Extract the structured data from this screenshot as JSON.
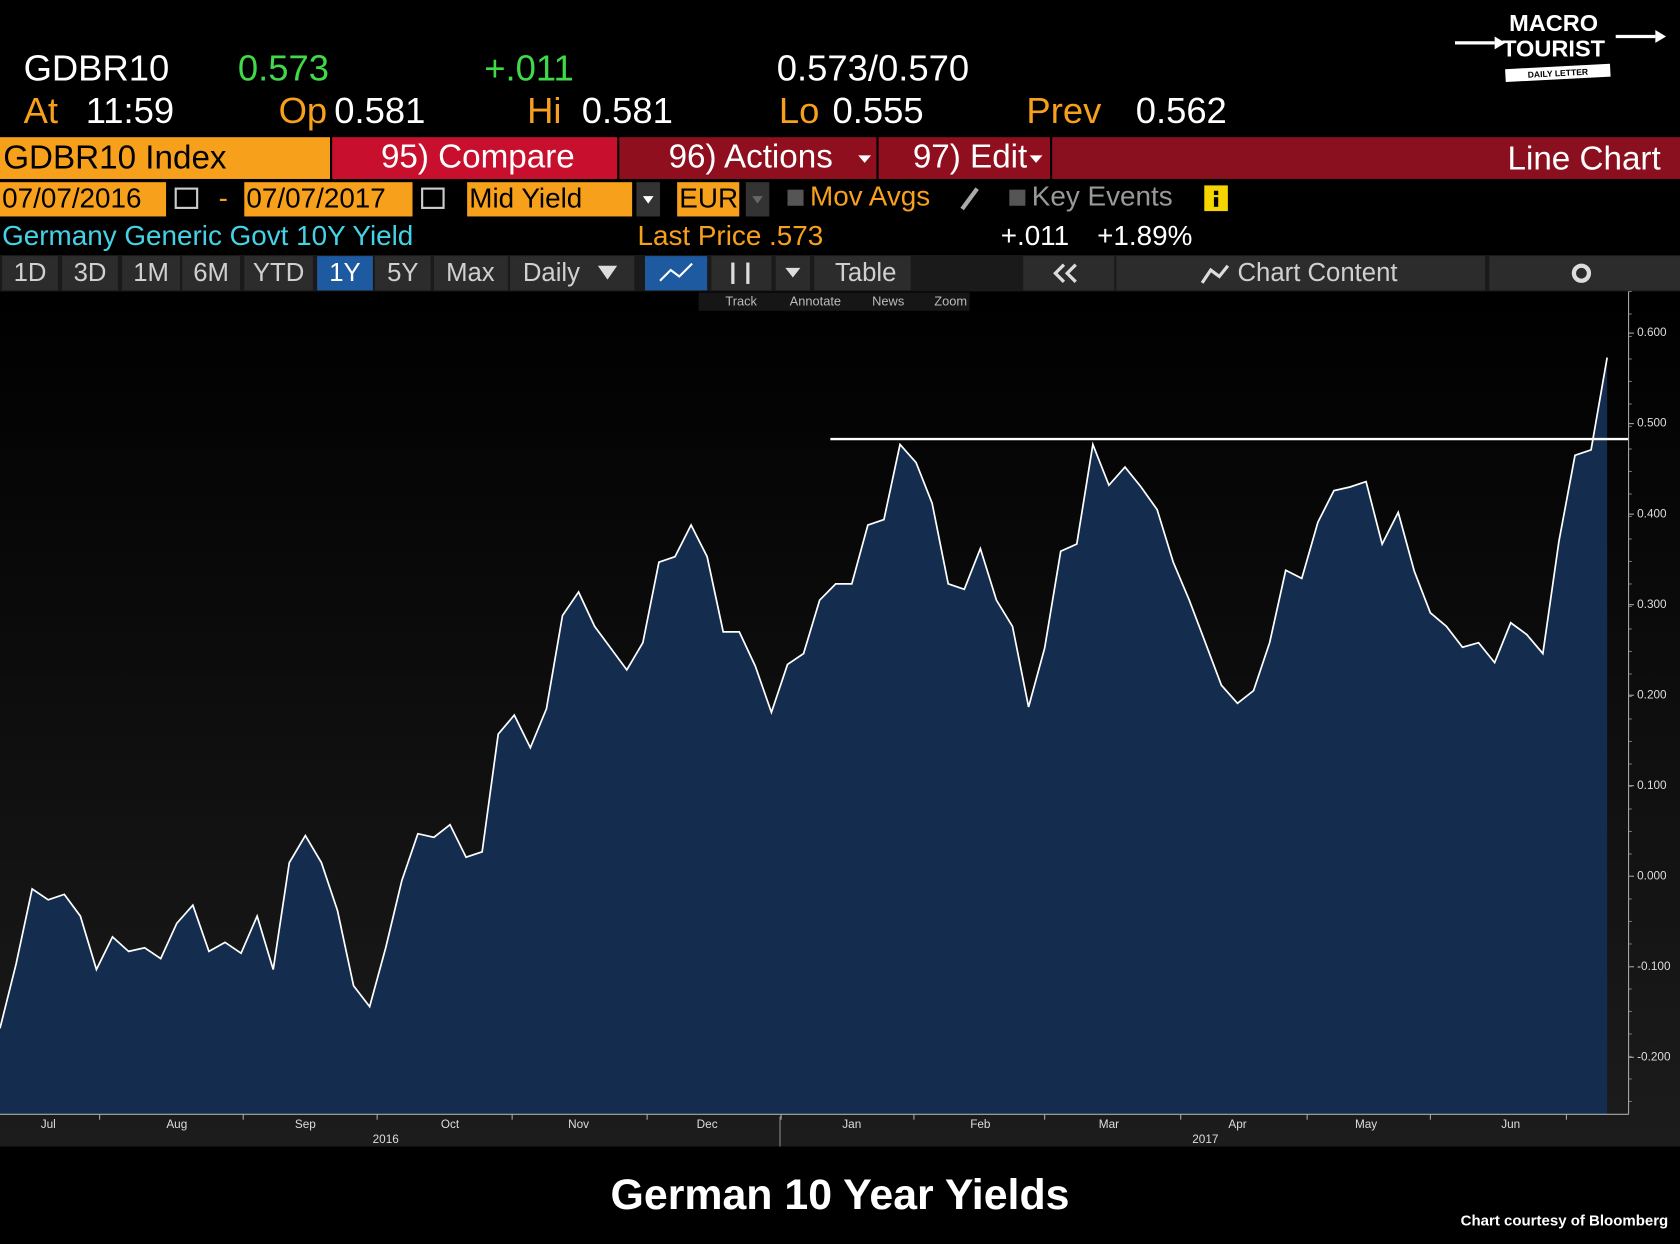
{
  "header": {
    "ticker": "GDBR10",
    "last": "0.573",
    "change": "+.011",
    "bid_ask": "0.573/0.570",
    "at_label": "At",
    "time": "11:59",
    "open_label": "Op",
    "open": "0.581",
    "high_label": "Hi",
    "high": "0.581",
    "low_label": "Lo",
    "low": "0.555",
    "prev_label": "Prev",
    "prev": "0.562"
  },
  "logo": {
    "line1": "MACRO",
    "line2": "TOURIST",
    "line3": "DAILY LETTER"
  },
  "menu": {
    "security": "GDBR10 Index",
    "compare": "95) Compare",
    "actions": "96) Actions",
    "edit": "97) Edit",
    "chart_type": "Line Chart"
  },
  "controls": {
    "start_date": "07/07/2016",
    "separator": "-",
    "end_date": "07/07/2017",
    "field": "Mid Yield",
    "currency": "EUR",
    "mov_avgs": "Mov Avgs",
    "key_events": "Key Events"
  },
  "info": {
    "name": "Germany Generic Govt 10Y Yield",
    "last_price": "Last Price .573",
    "change": "+.011",
    "change_pct": "+1.89%"
  },
  "periods": [
    "1D",
    "3D",
    "1M",
    "6M",
    "YTD",
    "1Y",
    "5Y",
    "Max"
  ],
  "frequency": "Daily",
  "table": "Table",
  "chart_content": "Chart Content",
  "tools": [
    "Track",
    "Annotate",
    "News",
    "Zoom"
  ],
  "chart_data": {
    "type": "area",
    "categories": [
      null,
      null,
      null,
      "Jul",
      null,
      null,
      null,
      null,
      null,
      null,
      null,
      "Aug",
      null,
      null,
      null,
      null,
      null,
      null,
      null,
      "Sep",
      null,
      null,
      null,
      null,
      null,
      null,
      null,
      null,
      "Oct",
      null,
      null,
      null,
      null,
      null,
      null,
      null,
      "Nov",
      null,
      null,
      null,
      null,
      null,
      null,
      null,
      "Dec",
      null,
      null,
      null,
      null,
      null,
      null,
      null,
      null,
      "Jan",
      null,
      null,
      null,
      null,
      null,
      null,
      null,
      "Feb",
      null,
      null,
      null,
      null,
      null,
      null,
      null,
      "Mar",
      null,
      null,
      null,
      null,
      null,
      null,
      null,
      "Apr",
      null,
      null,
      null,
      null,
      null,
      null,
      null,
      "May",
      null,
      null,
      null,
      null,
      null,
      null,
      null,
      null,
      "Jun",
      null,
      null,
      null,
      null,
      null,
      null
    ],
    "year_categories": [
      null,
      null,
      null,
      null,
      null,
      null,
      null,
      null,
      null,
      null,
      null,
      null,
      null,
      null,
      null,
      null,
      null,
      null,
      null,
      null,
      null,
      null,
      null,
      null,
      "2016",
      null,
      null,
      null,
      null,
      null,
      null,
      null,
      null,
      null,
      null,
      null,
      null,
      null,
      null,
      null,
      null,
      null,
      null,
      null,
      null,
      null,
      null,
      null,
      null,
      null,
      null,
      null,
      null,
      null,
      null,
      null,
      null,
      null,
      null,
      null,
      null,
      null,
      null,
      null,
      null,
      null,
      null,
      null,
      null,
      null,
      null,
      null,
      null,
      null,
      null,
      "2017",
      null,
      null,
      null,
      null,
      null,
      null,
      null,
      null,
      null,
      null,
      null,
      null,
      null,
      null,
      null,
      null,
      null,
      null,
      null,
      null,
      null,
      null,
      null,
      null,
      null
    ],
    "values": [
      -0.168,
      -0.097,
      -0.014,
      -0.026,
      -0.02,
      -0.044,
      -0.103,
      -0.067,
      -0.083,
      -0.079,
      -0.091,
      -0.052,
      -0.032,
      -0.083,
      -0.073,
      -0.085,
      -0.044,
      -0.103,
      0.015,
      0.045,
      0.015,
      -0.038,
      -0.121,
      -0.144,
      -0.079,
      -0.005,
      0.047,
      0.043,
      0.057,
      0.021,
      0.027,
      0.157,
      0.178,
      0.142,
      0.185,
      0.288,
      0.314,
      0.276,
      0.252,
      0.228,
      0.258,
      0.347,
      0.353,
      0.388,
      0.353,
      0.27,
      0.27,
      0.232,
      0.181,
      0.234,
      0.246,
      0.305,
      0.323,
      0.323,
      0.388,
      0.394,
      0.477,
      0.457,
      0.412,
      0.323,
      0.317,
      0.362,
      0.305,
      0.276,
      0.187,
      0.252,
      0.359,
      0.367,
      0.477,
      0.432,
      0.452,
      0.43,
      0.405,
      0.347,
      0.305,
      0.258,
      0.211,
      0.191,
      0.205,
      0.258,
      0.338,
      0.329,
      0.391,
      0.426,
      0.43,
      0.436,
      0.367,
      0.402,
      0.337,
      0.291,
      0.276,
      0.253,
      0.258,
      0.236,
      0.28,
      0.267,
      0.246,
      0.37,
      0.465,
      0.471,
      0.573
    ],
    "color": "#142d4f",
    "line_color": "#ffffff",
    "reference_line": 0.483,
    "reference_color": "#ffffff",
    "ylim": [
      -0.263,
      0.646
    ],
    "yticks": [
      {
        "value": -0.2,
        "label": "-0.200"
      },
      {
        "value": -0.1,
        "label": "-0.100"
      },
      {
        "value": 0,
        "label": "0.000"
      },
      {
        "value": 0.1,
        "label": "0.100"
      },
      {
        "value": 0.2,
        "label": "0.200"
      },
      {
        "value": 0.3,
        "label": "0.300"
      },
      {
        "value": 0.4,
        "label": "0.400"
      },
      {
        "value": 0.5,
        "label": "0.500"
      },
      {
        "value": 0.6,
        "label": "0.600"
      }
    ],
    "grid": false
  },
  "caption": "German 10 Year Yields",
  "credit": "Chart courtesy of Bloomberg"
}
